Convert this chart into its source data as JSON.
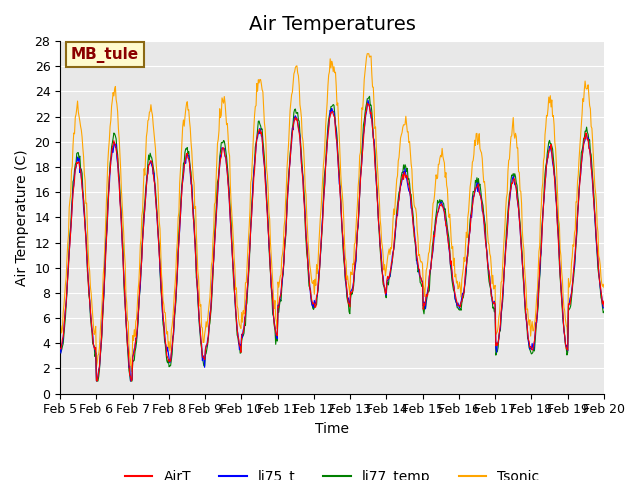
{
  "title": "Air Temperatures",
  "ylabel": "Air Temperature (C)",
  "xlabel": "Time",
  "ylim": [
    0,
    28
  ],
  "yticks": [
    0,
    2,
    4,
    6,
    8,
    10,
    12,
    14,
    16,
    18,
    20,
    22,
    24,
    26,
    28
  ],
  "date_labels": [
    "Feb 5",
    "Feb 6",
    "Feb 7",
    "Feb 8",
    "Feb 9",
    "Feb 10",
    "Feb 11",
    "Feb 12",
    "Feb 13",
    "Feb 14",
    "Feb 15",
    "Feb 16",
    "Feb 17",
    "Feb 18",
    "Feb 19",
    "Feb 20"
  ],
  "annotation": "MB_tule",
  "annotation_color": "#8B0000",
  "annotation_bg": "#FFFACD",
  "annotation_border": "#8B6914",
  "legend_labels": [
    "AirT",
    "li75_t",
    "li77_temp",
    "Tsonic"
  ],
  "line_colors": [
    "red",
    "blue",
    "green",
    "orange"
  ],
  "background_color": "#E8E8E8",
  "grid_color": "white",
  "title_fontsize": 14,
  "axis_fontsize": 10,
  "tick_fontsize": 9
}
